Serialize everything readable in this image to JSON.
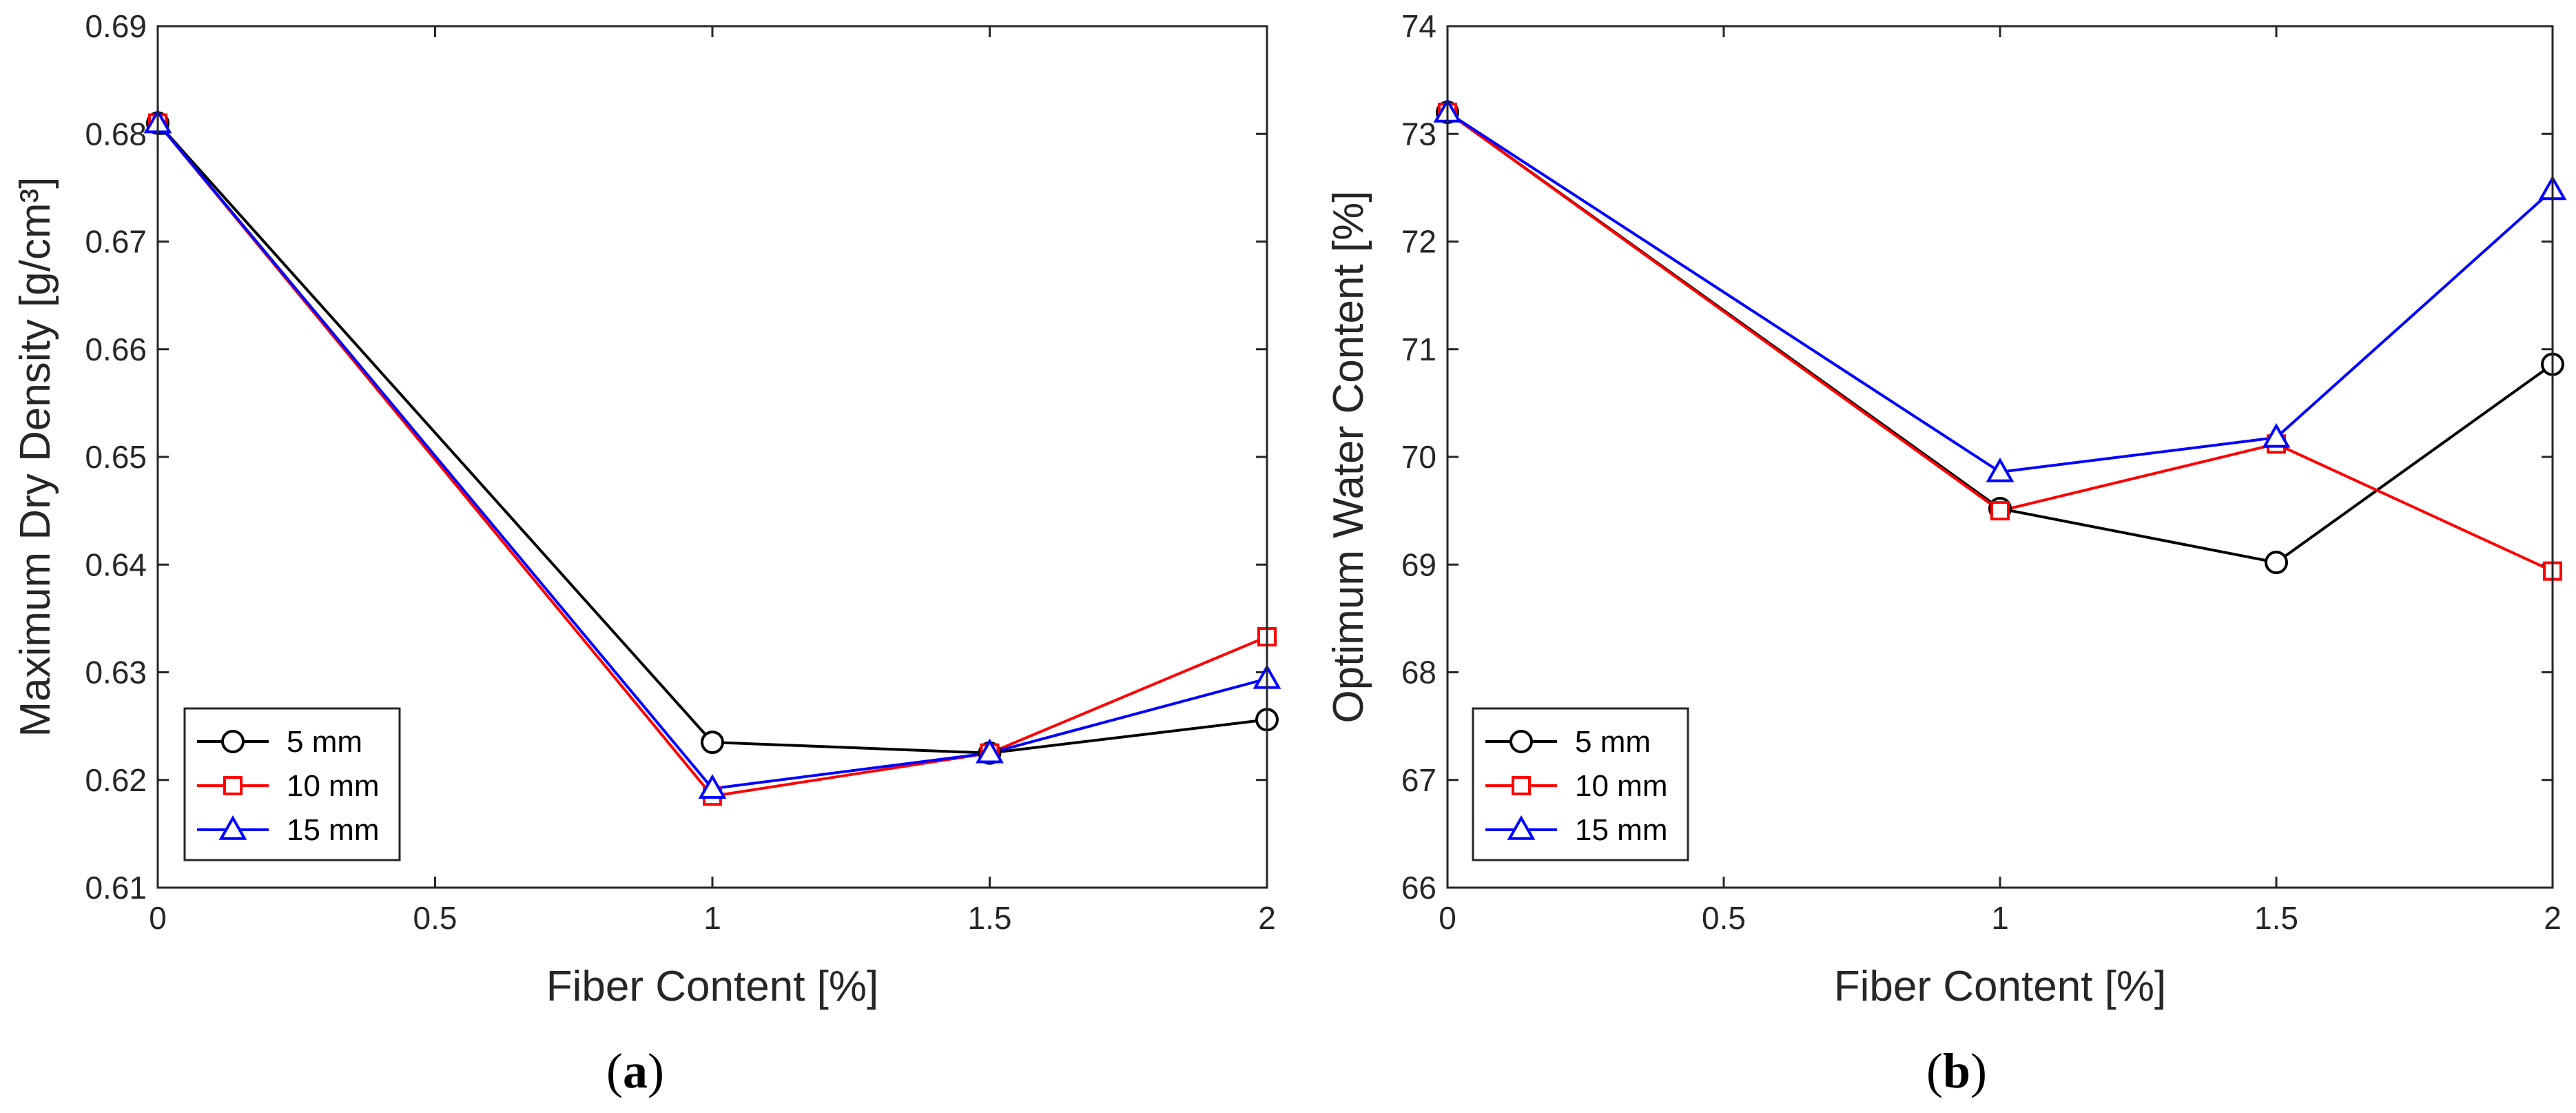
{
  "colors": {
    "s5": "#000000",
    "s10": "#ff0000",
    "s15": "#0000ff"
  },
  "chart_data": [
    {
      "type": "line",
      "panel_label": "a",
      "xlabel": "Fiber Content [%]",
      "ylabel": "Maximum Dry Density [g/cm³]",
      "xlim": [
        0,
        2
      ],
      "ylim": [
        0.61,
        0.69
      ],
      "xticks": [
        0,
        0.5,
        1,
        1.5,
        2
      ],
      "xtick_labels": [
        "0",
        "0.5",
        "1",
        "1.5",
        "2"
      ],
      "yticks": [
        0.61,
        0.62,
        0.63,
        0.64,
        0.65,
        0.66,
        0.67,
        0.68,
        0.69
      ],
      "ytick_labels": [
        "0.61",
        "0.62",
        "0.63",
        "0.64",
        "0.65",
        "0.66",
        "0.67",
        "0.68",
        "0.69"
      ],
      "x": [
        0,
        1,
        1.5,
        2
      ],
      "legend_position": "bottom-left",
      "series": [
        {
          "name": "5 mm",
          "color": "#000000",
          "marker": "circle",
          "values": [
            0.681,
            0.6235,
            0.6225,
            0.6256
          ]
        },
        {
          "name": "10 mm",
          "color": "#ff0000",
          "marker": "square",
          "values": [
            0.681,
            0.6185,
            0.6225,
            0.6333
          ]
        },
        {
          "name": "15 mm",
          "color": "#0000ff",
          "marker": "triangle",
          "values": [
            0.681,
            0.6192,
            0.6225,
            0.6294
          ]
        }
      ]
    },
    {
      "type": "line",
      "panel_label": "b",
      "xlabel": "Fiber Content [%]",
      "ylabel": "Optimum Water Content [%]",
      "xlim": [
        0,
        2
      ],
      "ylim": [
        66,
        74
      ],
      "xticks": [
        0,
        0.5,
        1,
        1.5,
        2
      ],
      "xtick_labels": [
        "0",
        "0.5",
        "1",
        "1.5",
        "2"
      ],
      "yticks": [
        66,
        67,
        68,
        69,
        70,
        71,
        72,
        73,
        74
      ],
      "ytick_labels": [
        "66",
        "67",
        "68",
        "69",
        "70",
        "71",
        "72",
        "73",
        "74"
      ],
      "x": [
        0,
        1,
        1.5,
        2
      ],
      "legend_position": "bottom-left",
      "series": [
        {
          "name": "5 mm",
          "color": "#000000",
          "marker": "circle",
          "values": [
            73.2,
            69.52,
            69.02,
            70.86
          ]
        },
        {
          "name": "10 mm",
          "color": "#ff0000",
          "marker": "square",
          "values": [
            73.2,
            69.5,
            70.12,
            68.94
          ]
        },
        {
          "name": "15 mm",
          "color": "#0000ff",
          "marker": "triangle",
          "values": [
            73.2,
            69.86,
            70.18,
            72.48
          ]
        }
      ]
    }
  ]
}
